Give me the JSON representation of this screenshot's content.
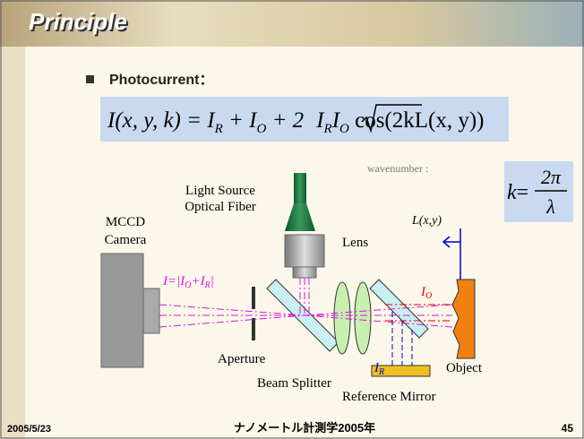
{
  "header": {
    "title": "Principle"
  },
  "bullet": "Photocurrent：",
  "equation": [
    "I(x, y, k) = I",
    "R",
    " + I",
    "O",
    " + 2",
    "I",
    "R",
    "I",
    "O",
    " cos(2kL(x, y))"
  ],
  "wavenumber": {
    "label": "wavenumber :",
    "lhs": "k",
    "eq": "=",
    "num": "2π",
    "den": "λ"
  },
  "diagram": {
    "light_source": [
      "Light Source",
      "Optical Fiber"
    ],
    "camera": [
      "MCCD",
      "Camera"
    ],
    "lens": "Lens",
    "path": "L(x,y)",
    "intensity": [
      "I=|I",
      "O",
      "+I",
      "R",
      "|"
    ],
    "io": [
      "I",
      "O"
    ],
    "ir": [
      "I",
      "R"
    ],
    "aperture": "Aperture",
    "beam_splitter": "Beam Splitter",
    "reference_mirror": "Reference Mirror",
    "object": "Object"
  },
  "footer": {
    "date": "2005/5/23",
    "course": "ナノメートル計測学2005年",
    "page": "45"
  }
}
